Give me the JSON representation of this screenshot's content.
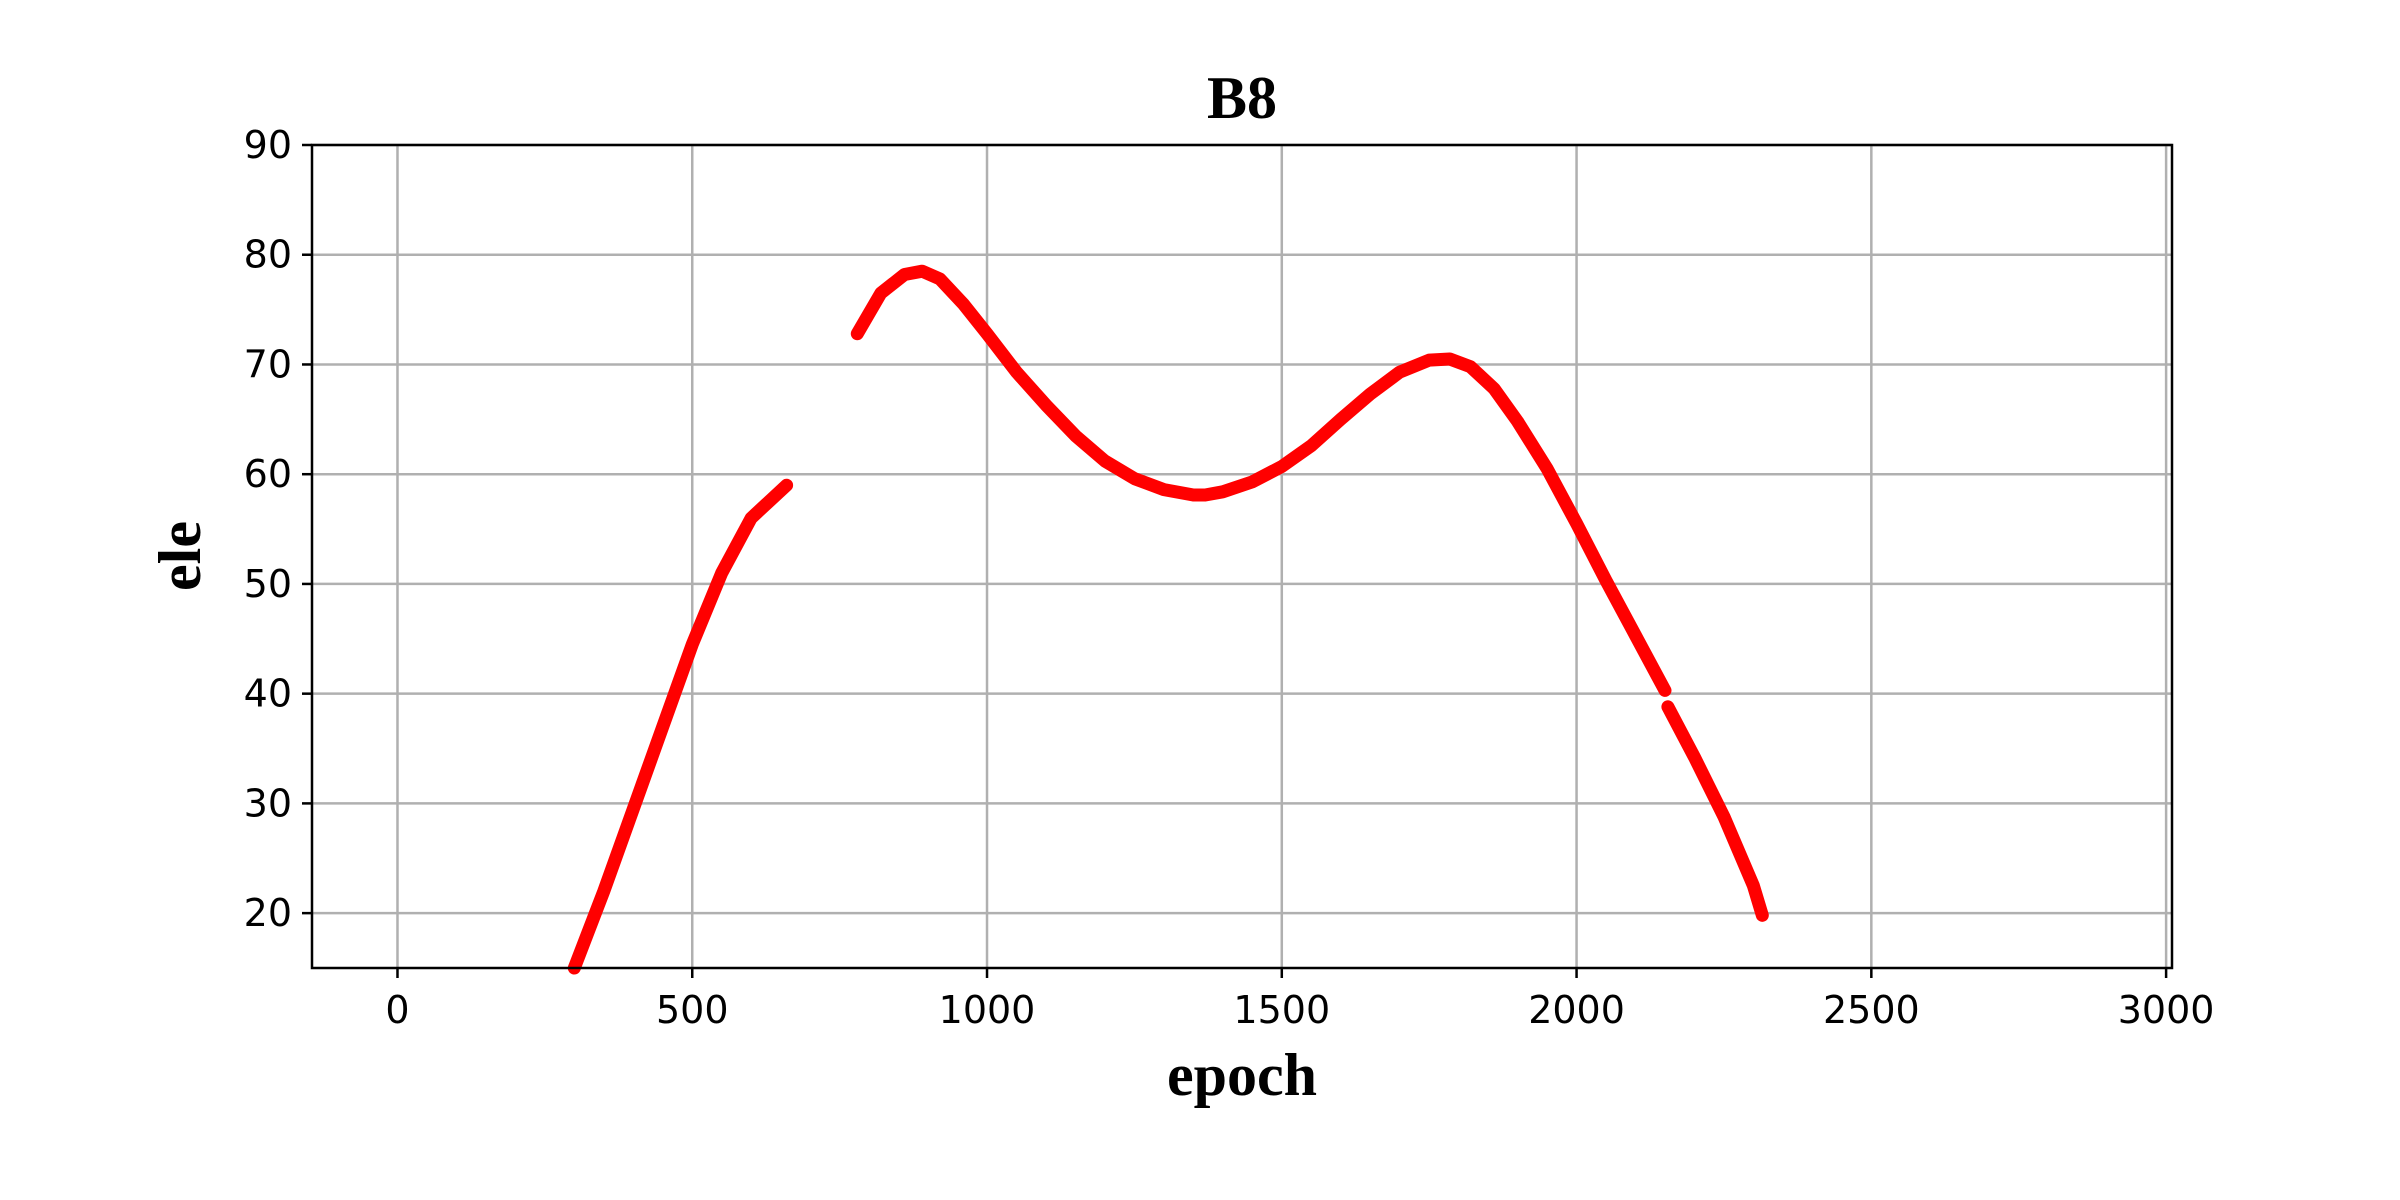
{
  "chart_data": {
    "type": "line",
    "title": "B8",
    "xlabel": "epoch",
    "ylabel": "ele",
    "xlim": [
      -145,
      3010
    ],
    "ylim": [
      15,
      90
    ],
    "xticks": [
      0,
      500,
      1000,
      1500,
      2000,
      2500,
      3000
    ],
    "yticks": [
      20,
      30,
      40,
      50,
      60,
      70,
      80,
      90
    ],
    "grid": true,
    "color": "#ff0000",
    "segments": [
      {
        "x": [
          300,
          350,
          400,
          450,
          500,
          550,
          600,
          660
        ],
        "y": [
          15,
          22,
          29.5,
          37,
          44.5,
          51,
          56,
          59
        ]
      },
      {
        "x": [
          780,
          820,
          860,
          890,
          920,
          960,
          1000,
          1050,
          1100,
          1150,
          1200,
          1250,
          1300,
          1350,
          1370,
          1400,
          1450,
          1500,
          1550,
          1600,
          1650,
          1700,
          1750,
          1785,
          1820,
          1860,
          1900,
          1950,
          2000,
          2050,
          2100,
          2150
        ],
        "y": [
          72.8,
          76.5,
          78.2,
          78.5,
          77.8,
          75.5,
          72.8,
          69.3,
          66.3,
          63.5,
          61.2,
          59.6,
          58.6,
          58.1,
          58.1,
          58.4,
          59.3,
          60.7,
          62.6,
          65,
          67.3,
          69.3,
          70.4,
          70.5,
          69.8,
          67.8,
          64.8,
          60.5,
          55.5,
          50.3,
          45.3,
          40.3
        ]
      },
      {
        "x": [
          2155,
          2200,
          2250,
          2300,
          2315
        ],
        "y": [
          38.8,
          34.2,
          28.8,
          22.5,
          19.8
        ]
      }
    ]
  }
}
